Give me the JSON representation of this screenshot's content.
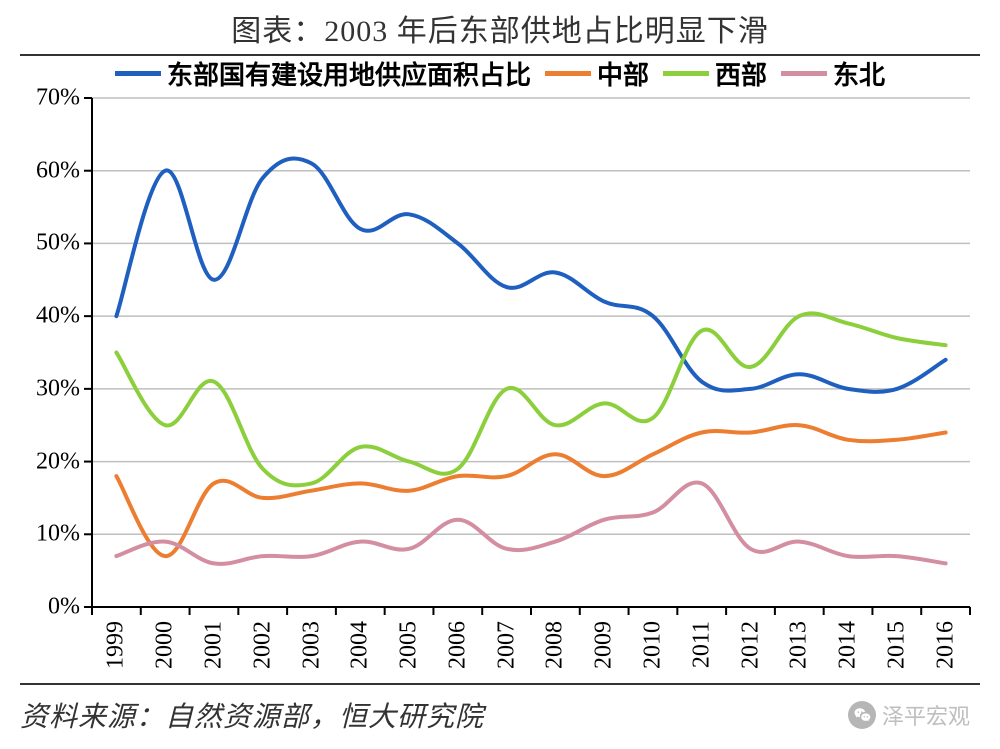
{
  "title": "图表：2003 年后东部供地占比明显下滑",
  "source": "资料来源：自然资源部，恒大研究院",
  "watermark": "泽平宏观",
  "chart": {
    "type": "line",
    "background_color": "#ffffff",
    "grid_color": "#bfbfbf",
    "axis_color": "#000000",
    "line_width": 4,
    "title_fontsize": 30,
    "label_fontsize": 24,
    "legend_fontsize": 26,
    "ylim": [
      0,
      70
    ],
    "ytick_step": 10,
    "y_format": "percent",
    "x_categories": [
      "1999",
      "2000",
      "2001",
      "2002",
      "2003",
      "2004",
      "2005",
      "2006",
      "2007",
      "2008",
      "2009",
      "2010",
      "2011",
      "2012",
      "2013",
      "2014",
      "2015",
      "2016"
    ],
    "series": [
      {
        "name": "东部国有建设用地供应面积占比",
        "color": "#1f5fbf",
        "values": [
          40,
          60,
          45,
          59,
          61,
          52,
          54,
          50,
          44,
          46,
          42,
          40,
          31,
          30,
          32,
          30,
          30,
          34
        ]
      },
      {
        "name": "中部",
        "color": "#ed7d31",
        "values": [
          18,
          7,
          17,
          15,
          16,
          17,
          16,
          18,
          18,
          21,
          18,
          21,
          24,
          24,
          25,
          23,
          23,
          24
        ]
      },
      {
        "name": "西部",
        "color": "#8ccf3c",
        "values": [
          35,
          25,
          31,
          19,
          17,
          22,
          20,
          19,
          30,
          25,
          28,
          26,
          38,
          33,
          40,
          39,
          37,
          36
        ]
      },
      {
        "name": "东北",
        "color": "#d48ea2",
        "values": [
          7,
          9,
          6,
          7,
          7,
          9,
          8,
          12,
          8,
          9,
          12,
          13,
          17,
          8,
          9,
          7,
          7,
          6
        ]
      }
    ]
  }
}
